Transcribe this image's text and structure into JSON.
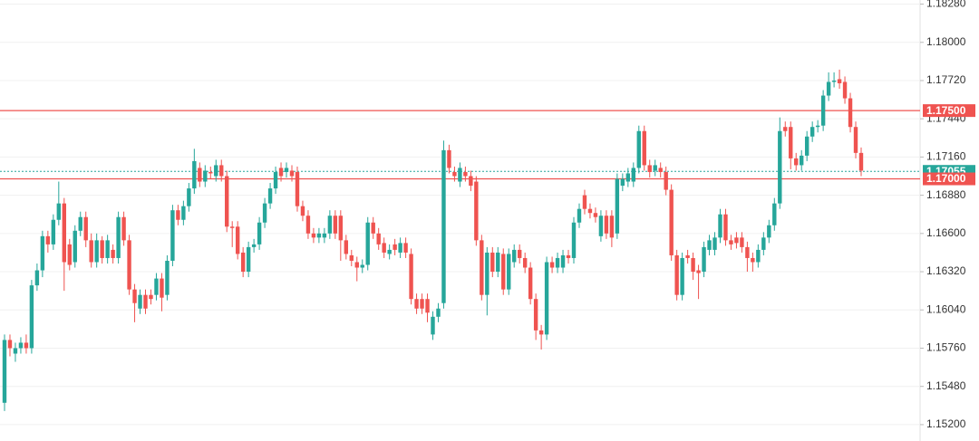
{
  "chart_data": {
    "type": "candlestick",
    "up_color": "#26a69a",
    "down_color": "#ef5350",
    "grid": true,
    "ylim": [
      1.1508,
      1.1831
    ],
    "yticks": [
      {
        "value": 1.1828,
        "label": "1.18280"
      },
      {
        "value": 1.18,
        "label": "1.18000"
      },
      {
        "value": 1.1772,
        "label": "1.17720"
      },
      {
        "value": 1.1744,
        "label": "1.17440"
      },
      {
        "value": 1.1716,
        "label": "1.17160"
      },
      {
        "value": 1.1688,
        "label": "1.16880"
      },
      {
        "value": 1.166,
        "label": "1.16600"
      },
      {
        "value": 1.1632,
        "label": "1.16320"
      },
      {
        "value": 1.1604,
        "label": "1.16040"
      },
      {
        "value": 1.1576,
        "label": "1.15760"
      },
      {
        "value": 1.1548,
        "label": "1.15480"
      },
      {
        "value": 1.152,
        "label": "1.15200"
      }
    ],
    "hlines": [
      {
        "value": 1.175,
        "label": "1.17500",
        "color": "#ef5350"
      },
      {
        "value": 1.17,
        "label": "1.17000",
        "color": "#ef5350"
      }
    ],
    "price_line": {
      "value": 1.17055,
      "label": "1.17055",
      "color": "#26a69a"
    },
    "open": [
      1.1536,
      1.1582,
      1.1572,
      1.1576,
      1.158,
      1.1576,
      1.1622,
      1.1633,
      1.1658,
      1.1652,
      1.167,
      1.1682,
      1.1652,
      1.1639,
      1.1662,
      1.1672,
      1.1655,
      1.1639,
      1.1655,
      1.1642,
      1.1648,
      1.1642,
      1.1672,
      1.1655,
      1.1619,
      1.1605,
      1.1615,
      1.1615,
      1.1615,
      1.1627,
      1.1615,
      1.164,
      1.1677,
      1.167,
      1.168,
      1.1693,
      1.1708,
      1.1698,
      1.1705,
      1.1702,
      1.171,
      1.1702,
      1.1665,
      1.1665,
      1.1646,
      1.1632,
      1.165,
      1.1652,
      1.1668,
      1.1682,
      1.1693,
      1.1708,
      1.1705,
      1.1706,
      1.1705,
      1.168,
      1.1673,
      1.166,
      1.1657,
      1.1657,
      1.166,
      1.1673,
      1.1673,
      1.1655,
      1.1644,
      1.1639,
      1.1635,
      1.1637,
      1.1668,
      1.166,
      1.1653,
      1.1645,
      1.1652,
      1.1646,
      1.1653,
      1.1645,
      1.1612,
      1.1612,
      1.1612,
      1.1586,
      1.1599,
      1.1609,
      1.1721,
      1.1705,
      1.1698,
      1.1705,
      1.1702,
      1.1698,
      1.1655,
      1.1615,
      1.1646,
      1.1632,
      1.1645,
      1.1619,
      1.1639,
      1.1648,
      1.1642,
      1.1635,
      1.1612,
      1.1589,
      1.1586,
      1.1639,
      1.1635,
      1.1635,
      1.1644,
      1.1642,
      1.1668,
      1.1688,
      1.1678,
      1.1675,
      1.1658,
      1.1673,
      1.1673,
      1.166,
      1.1695,
      1.1698,
      1.1698,
      1.1708,
      1.1735,
      1.171,
      1.1706,
      1.1708,
      1.1705,
      1.1692,
      1.1644,
      1.1615,
      1.1644,
      1.1642,
      1.1633,
      1.1632,
      1.1648,
      1.1648,
      1.1657,
      1.1674,
      1.1655,
      1.1657,
      1.1657,
      1.165,
      1.1642,
      1.1639,
      1.1648,
      1.1657,
      1.1666,
      1.1682,
      1.1738,
      1.1738,
      1.1715,
      1.171,
      1.1717,
      1.1731,
      1.1738,
      1.1739,
      1.1761,
      1.1771,
      1.1773,
      1.1771,
      1.1759,
      1.1738,
      1.1719
    ],
    "high": [
      1.1586,
      1.1586,
      1.158,
      1.1584,
      1.1586,
      1.1626,
      1.1638,
      1.1662,
      1.1662,
      1.1674,
      1.1698,
      1.1686,
      1.1656,
      1.1666,
      1.1676,
      1.1676,
      1.166,
      1.166,
      1.1658,
      1.1659,
      1.1652,
      1.1676,
      1.1676,
      1.1659,
      1.1623,
      1.1619,
      1.1619,
      1.1619,
      1.1631,
      1.1631,
      1.1644,
      1.1681,
      1.1681,
      1.1684,
      1.1697,
      1.1722,
      1.1712,
      1.171,
      1.1709,
      1.1714,
      1.1714,
      1.1706,
      1.1669,
      1.1669,
      1.165,
      1.1654,
      1.1656,
      1.1672,
      1.1686,
      1.1697,
      1.1709,
      1.1712,
      1.1712,
      1.171,
      1.1709,
      1.1684,
      1.1677,
      1.1664,
      1.1664,
      1.1664,
      1.1677,
      1.1677,
      1.1677,
      1.1659,
      1.1648,
      1.1643,
      1.1641,
      1.1672,
      1.1672,
      1.1664,
      1.1657,
      1.1652,
      1.1656,
      1.1657,
      1.1657,
      1.1649,
      1.1616,
      1.1616,
      1.1616,
      1.1603,
      1.1609,
      1.1728,
      1.1725,
      1.1709,
      1.1712,
      1.1709,
      1.1706,
      1.1702,
      1.1659,
      1.165,
      1.165,
      1.165,
      1.1649,
      1.1649,
      1.1652,
      1.1652,
      1.1646,
      1.1639,
      1.1616,
      1.1593,
      1.1643,
      1.1643,
      1.1646,
      1.1648,
      1.1648,
      1.1672,
      1.1682,
      1.1692,
      1.1682,
      1.1679,
      1.1677,
      1.1677,
      1.1677,
      1.1704,
      1.1704,
      1.1708,
      1.1712,
      1.1739,
      1.1739,
      1.1714,
      1.1714,
      1.1712,
      1.1709,
      1.1696,
      1.1648,
      1.1646,
      1.1648,
      1.1646,
      1.1637,
      1.1654,
      1.1659,
      1.1661,
      1.1678,
      1.1678,
      1.1659,
      1.1661,
      1.1661,
      1.1654,
      1.1646,
      1.1652,
      1.1661,
      1.167,
      1.1686,
      1.1745,
      1.1742,
      1.1742,
      1.1719,
      1.1721,
      1.1735,
      1.1742,
      1.1743,
      1.1765,
      1.1778,
      1.1778,
      1.178,
      1.1775,
      1.1763,
      1.1742,
      1.1723
    ],
    "low": [
      1.153,
      1.157,
      1.1566,
      1.1572,
      1.1572,
      1.1572,
      1.1618,
      1.1628,
      1.1646,
      1.1648,
      1.1666,
      1.1618,
      1.1633,
      1.1635,
      1.1658,
      1.165,
      1.1635,
      1.1635,
      1.1638,
      1.1638,
      1.1638,
      1.1638,
      1.1651,
      1.1615,
      1.1595,
      1.1601,
      1.1601,
      1.1608,
      1.1611,
      1.1603,
      1.1611,
      1.1636,
      1.1666,
      1.1666,
      1.1676,
      1.1689,
      1.1694,
      1.1694,
      1.17,
      1.1698,
      1.1698,
      1.1661,
      1.165,
      1.1641,
      1.1628,
      1.1628,
      1.1646,
      1.1648,
      1.1664,
      1.1678,
      1.1689,
      1.1698,
      1.1701,
      1.1698,
      1.1676,
      1.1669,
      1.1656,
      1.1653,
      1.1653,
      1.1653,
      1.1656,
      1.1656,
      1.164,
      1.1641,
      1.1636,
      1.1625,
      1.1631,
      1.1633,
      1.1656,
      1.1648,
      1.1642,
      1.1641,
      1.1644,
      1.1642,
      1.1642,
      1.1608,
      1.1601,
      1.1601,
      1.1595,
      1.1582,
      1.1595,
      1.1605,
      1.1704,
      1.1698,
      1.1694,
      1.1698,
      1.1691,
      1.1651,
      1.1611,
      1.16,
      1.1628,
      1.1628,
      1.1615,
      1.1615,
      1.1635,
      1.1638,
      1.1631,
      1.1608,
      1.1582,
      1.1575,
      1.1582,
      1.1631,
      1.1631,
      1.1631,
      1.1638,
      1.1638,
      1.1664,
      1.1674,
      1.1671,
      1.1668,
      1.1654,
      1.1656,
      1.165,
      1.1656,
      1.1691,
      1.1694,
      1.1694,
      1.1704,
      1.1706,
      1.1701,
      1.1702,
      1.1701,
      1.1688,
      1.164,
      1.1611,
      1.1611,
      1.1638,
      1.1626,
      1.1612,
      1.1628,
      1.1644,
      1.1644,
      1.1653,
      1.1651,
      1.1648,
      1.1649,
      1.1646,
      1.1632,
      1.1632,
      1.1635,
      1.1644,
      1.1653,
      1.1662,
      1.1678,
      1.1731,
      1.1707,
      1.1706,
      1.1706,
      1.1713,
      1.1727,
      1.1734,
      1.1735,
      1.1757,
      1.1767,
      1.1766,
      1.1755,
      1.1734,
      1.1715,
      1.1702
    ],
    "close": [
      1.1582,
      1.1576,
      1.1576,
      1.158,
      1.1576,
      1.1622,
      1.1633,
      1.1658,
      1.1652,
      1.167,
      1.1682,
      1.1639,
      1.1637,
      1.1662,
      1.1672,
      1.1655,
      1.1639,
      1.1655,
      1.1642,
      1.1655,
      1.1642,
      1.1672,
      1.1655,
      1.1619,
      1.1609,
      1.1615,
      1.1605,
      1.1612,
      1.1627,
      1.1613,
      1.164,
      1.1677,
      1.167,
      1.168,
      1.1693,
      1.1713,
      1.1698,
      1.1706,
      1.1704,
      1.171,
      1.1702,
      1.1665,
      1.1664,
      1.1645,
      1.1632,
      1.165,
      1.1652,
      1.1668,
      1.1682,
      1.1693,
      1.1705,
      1.1702,
      1.1708,
      1.1702,
      1.168,
      1.1673,
      1.166,
      1.1657,
      1.166,
      1.166,
      1.1673,
      1.166,
      1.1655,
      1.1645,
      1.164,
      1.1635,
      1.1637,
      1.1668,
      1.166,
      1.1652,
      1.1646,
      1.1648,
      1.1648,
      1.1653,
      1.1646,
      1.1612,
      1.1605,
      1.1605,
      1.1602,
      1.1599,
      1.1605,
      1.1721,
      1.1708,
      1.1702,
      1.1708,
      1.1702,
      1.1695,
      1.1655,
      1.1615,
      1.1646,
      1.1632,
      1.1646,
      1.1619,
      1.1645,
      1.1648,
      1.1642,
      1.1635,
      1.1612,
      1.1589,
      1.1586,
      1.1639,
      1.1635,
      1.1642,
      1.1644,
      1.1642,
      1.1668,
      1.1678,
      1.1678,
      1.1675,
      1.1672,
      1.1673,
      1.166,
      1.1657,
      1.17,
      1.17,
      1.1704,
      1.1708,
      1.1735,
      1.171,
      1.1705,
      1.171,
      1.1705,
      1.1692,
      1.1644,
      1.1615,
      1.1642,
      1.1642,
      1.1632,
      1.1631,
      1.165,
      1.1655,
      1.1657,
      1.1674,
      1.1655,
      1.1652,
      1.1653,
      1.165,
      1.1642,
      1.1639,
      1.1648,
      1.1657,
      1.1666,
      1.1682,
      1.1735,
      1.1735,
      1.1715,
      1.171,
      1.1717,
      1.1731,
      1.1738,
      1.1739,
      1.1761,
      1.1771,
      1.1772,
      1.177,
      1.1759,
      1.1738,
      1.1719,
      1.1706
    ]
  }
}
